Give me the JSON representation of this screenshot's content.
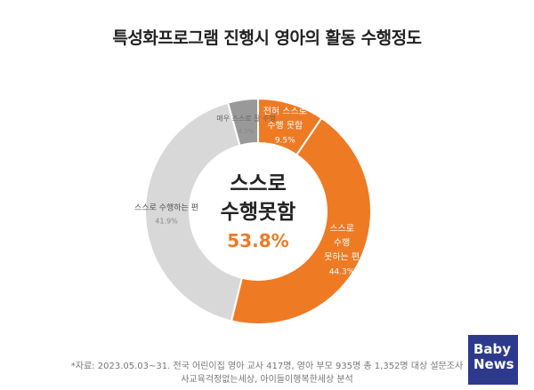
{
  "title": "특성화프로그램 진행시 영아의 활동 수행정도",
  "chart_data": {
    "type": "donut",
    "slices": [
      {
        "label": "전혀 스스로 수행 못함",
        "value": 9.5,
        "display": "9.5%",
        "color": "#ef7a24",
        "label_lines": [
          "전혀 스스로",
          "수행 못함"
        ]
      },
      {
        "label": "스스로 수행 못하는 편",
        "value": 44.3,
        "display": "44.3%",
        "color": "#ef7a24",
        "label_lines": [
          "스스로",
          "수행",
          "못하는 편"
        ]
      },
      {
        "label": "스스로 수행하는 편",
        "value": 41.9,
        "display": "41.9%",
        "color": "#d8d8d8",
        "label_lines": [
          "스스로 수행하는 편"
        ]
      },
      {
        "label": "매우 스스로 잘 수행",
        "value": 4.3,
        "display": "4.3%",
        "color": "#999999",
        "label_lines": [
          "매우 스스로 잘 수행"
        ]
      }
    ],
    "center": {
      "line1": "스스로",
      "line2": "수행못함",
      "value": "53.8%"
    }
  },
  "footnote": {
    "line1": "*자료: 2023.05.03~31. 전국 어린이집 영아 교사 417명, 영아 부모 935명 총 1,352명 대상 설문조사",
    "line2": "사교육걱정없는세상, 아이들이행복한세상 분석"
  },
  "logo": {
    "line1": "Baby",
    "line2": "News"
  }
}
